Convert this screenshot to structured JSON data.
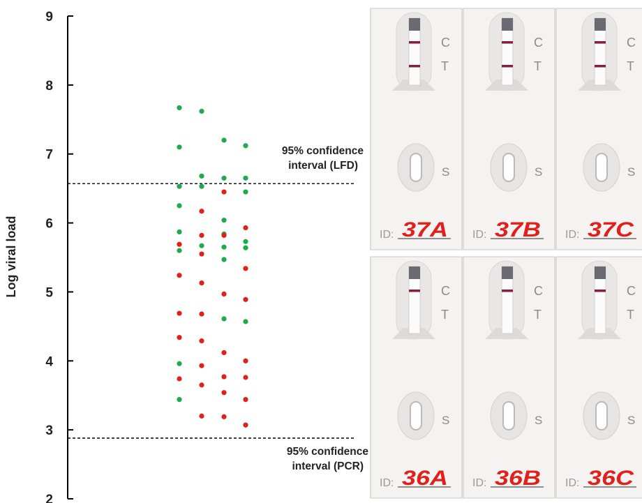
{
  "chart_data": {
    "type": "scatter",
    "ylabel": "Log viral load",
    "ylim": [
      2,
      9
    ],
    "yticks": [
      "2",
      "3",
      "4",
      "5",
      "6",
      "7",
      "8",
      "9"
    ],
    "grid": false,
    "columns": 4,
    "series": [
      {
        "color": "#1faa4e",
        "points": [
          {
            "col": 1,
            "y": 7.67
          },
          {
            "col": 1,
            "y": 7.1
          },
          {
            "col": 1,
            "y": 6.53
          },
          {
            "col": 1,
            "y": 6.25
          },
          {
            "col": 1,
            "y": 5.87
          },
          {
            "col": 1,
            "y": 5.6
          },
          {
            "col": 1,
            "y": 3.96
          },
          {
            "col": 1,
            "y": 3.44
          },
          {
            "col": 2,
            "y": 7.62
          },
          {
            "col": 2,
            "y": 6.68
          },
          {
            "col": 2,
            "y": 6.53
          },
          {
            "col": 2,
            "y": 5.67
          },
          {
            "col": 3,
            "y": 7.2
          },
          {
            "col": 3,
            "y": 6.65
          },
          {
            "col": 3,
            "y": 6.04
          },
          {
            "col": 3,
            "y": 5.84
          },
          {
            "col": 3,
            "y": 5.65
          },
          {
            "col": 3,
            "y": 5.47
          },
          {
            "col": 3,
            "y": 4.61
          },
          {
            "col": 4,
            "y": 7.12
          },
          {
            "col": 4,
            "y": 6.65
          },
          {
            "col": 4,
            "y": 6.45
          },
          {
            "col": 4,
            "y": 5.73
          },
          {
            "col": 4,
            "y": 5.64
          },
          {
            "col": 4,
            "y": 4.57
          }
        ]
      },
      {
        "color": "#e0201a",
        "points": [
          {
            "col": 1,
            "y": 5.69
          },
          {
            "col": 1,
            "y": 5.24
          },
          {
            "col": 1,
            "y": 4.69
          },
          {
            "col": 1,
            "y": 4.34
          },
          {
            "col": 1,
            "y": 3.74
          },
          {
            "col": 2,
            "y": 6.17
          },
          {
            "col": 2,
            "y": 5.82
          },
          {
            "col": 2,
            "y": 5.55
          },
          {
            "col": 2,
            "y": 5.13
          },
          {
            "col": 2,
            "y": 4.68
          },
          {
            "col": 2,
            "y": 4.29
          },
          {
            "col": 2,
            "y": 3.93
          },
          {
            "col": 2,
            "y": 3.65
          },
          {
            "col": 2,
            "y": 3.2
          },
          {
            "col": 3,
            "y": 6.45
          },
          {
            "col": 3,
            "y": 5.82
          },
          {
            "col": 3,
            "y": 4.97
          },
          {
            "col": 3,
            "y": 4.12
          },
          {
            "col": 3,
            "y": 3.77
          },
          {
            "col": 3,
            "y": 3.54
          },
          {
            "col": 3,
            "y": 3.19
          },
          {
            "col": 4,
            "y": 5.93
          },
          {
            "col": 4,
            "y": 5.34
          },
          {
            "col": 4,
            "y": 4.89
          },
          {
            "col": 4,
            "y": 4.0
          },
          {
            "col": 4,
            "y": 3.76
          },
          {
            "col": 4,
            "y": 3.44
          },
          {
            "col": 4,
            "y": 3.07
          }
        ]
      }
    ],
    "reference_lines": [
      {
        "y": 6.57,
        "label_line1": "95% confidence",
        "label_line2": "interval (LFD)"
      },
      {
        "y": 2.88,
        "label_line1": "95% confidence",
        "label_line2": "interval (PCR)"
      }
    ]
  },
  "photo_panels": [
    {
      "cassettes": [
        {
          "c_label": "C",
          "t_label": "T",
          "s_label": "S",
          "id_prefix": "ID:",
          "id_value": "37A",
          "t_line": true
        },
        {
          "c_label": "C",
          "t_label": "T",
          "s_label": "S",
          "id_prefix": "ID:",
          "id_value": "37B",
          "t_line": true
        },
        {
          "c_label": "C",
          "t_label": "T",
          "s_label": "S",
          "id_prefix": "ID:",
          "id_value": "37C",
          "t_line": true
        }
      ]
    },
    {
      "cassettes": [
        {
          "c_label": "C",
          "t_label": "T",
          "s_label": "S",
          "id_prefix": "ID:",
          "id_value": "36A",
          "t_line": false
        },
        {
          "c_label": "C",
          "t_label": "T",
          "s_label": "S",
          "id_prefix": "ID:",
          "id_value": "36B",
          "t_line": false
        },
        {
          "c_label": "C",
          "t_label": "T",
          "s_label": "S",
          "id_prefix": "ID:",
          "id_value": "36C",
          "t_line": false
        }
      ]
    }
  ]
}
